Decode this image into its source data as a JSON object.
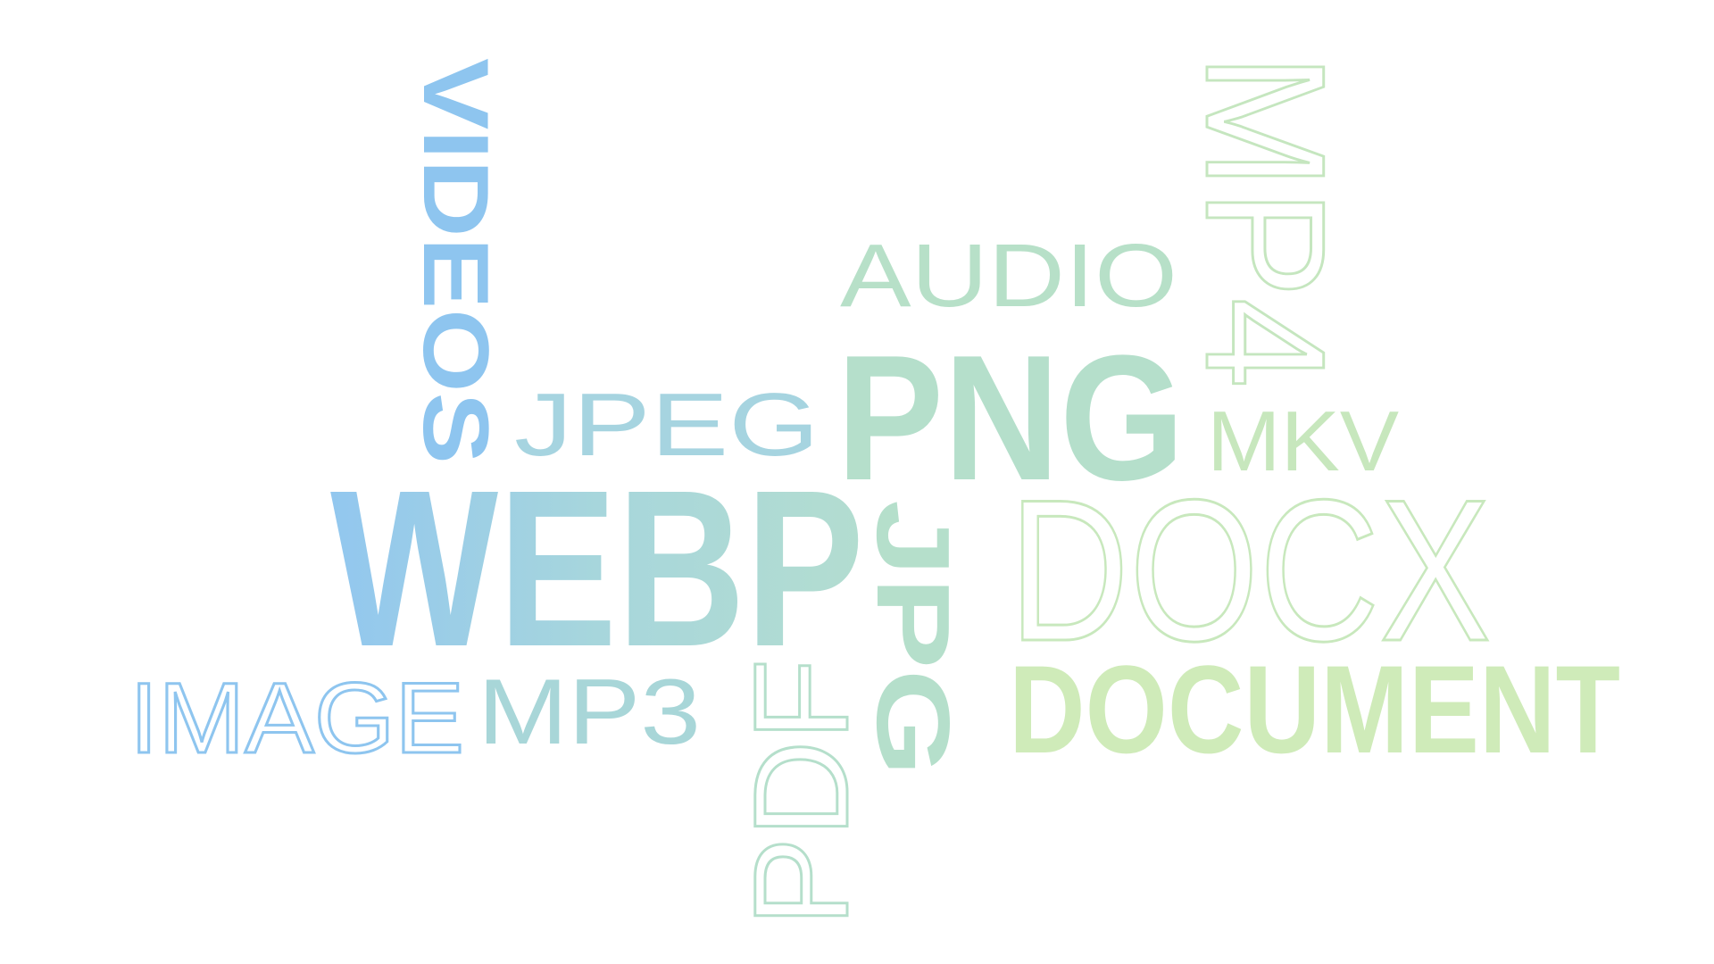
{
  "title": "",
  "words": [
    {
      "id": "video",
      "text": "VIDEOS",
      "style": "bold",
      "color": "#8ec5ef"
    },
    {
      "id": "image",
      "text": "IMAGE",
      "style": "outline",
      "color": "#8ec5ef"
    },
    {
      "id": "webp",
      "text": "WEBP",
      "style": "bold",
      "gradient": [
        "#92c7ef",
        "#a7d6dc",
        "#b3ddd0"
      ]
    },
    {
      "id": "jpeg",
      "text": "JPEG",
      "style": "light",
      "color": "#a6d4e0"
    },
    {
      "id": "mp3",
      "text": "MP3",
      "style": "light",
      "color": "#a8d6d8"
    },
    {
      "id": "pdf",
      "text": "PDF",
      "style": "outline",
      "color": "#b5dfcb"
    },
    {
      "id": "jpg",
      "text": "JPG",
      "style": "bold",
      "color": "#b5dfcb"
    },
    {
      "id": "png",
      "text": "PNG",
      "style": "bold",
      "color": "#b5dfcb"
    },
    {
      "id": "audio",
      "text": "AUDIO",
      "style": "light",
      "color": "#b7e0c8"
    },
    {
      "id": "mp4",
      "text": "MP4",
      "style": "outline",
      "color": "#c5e6bf"
    },
    {
      "id": "mkv",
      "text": "MKV",
      "style": "light",
      "color": "#c7e7bd"
    },
    {
      "id": "docx",
      "text": "DOCX",
      "style": "outline",
      "color": "#c8e8bd"
    },
    {
      "id": "document",
      "text": "DOCUMENT",
      "style": "bold",
      "color": "#cfebb9"
    }
  ]
}
